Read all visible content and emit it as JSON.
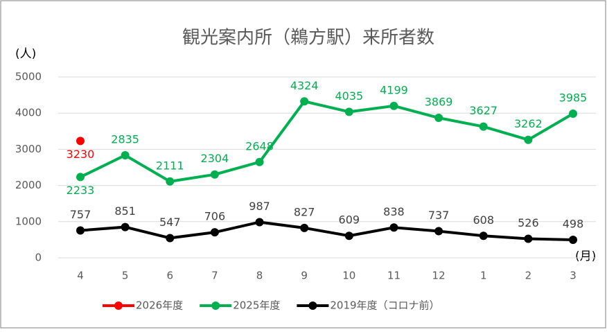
{
  "chart_data": {
    "type": "line",
    "title": "観光案内所（鵜方駅）来所者数",
    "y_label": "(人)",
    "x_label": "(月)",
    "categories": [
      "4",
      "5",
      "6",
      "7",
      "8",
      "9",
      "10",
      "11",
      "12",
      "1",
      "2",
      "3"
    ],
    "series": [
      {
        "name": "2026年度",
        "color": "#ff0000",
        "values": [
          3230,
          null,
          null,
          null,
          null,
          null,
          null,
          null,
          null,
          null,
          null,
          null
        ]
      },
      {
        "name": "2025年度",
        "color": "#00b050",
        "values": [
          2233,
          2835,
          2111,
          2304,
          2648,
          4324,
          4035,
          4199,
          3869,
          3627,
          3262,
          3985
        ]
      },
      {
        "name": "2019年度（コロナ前）",
        "color": "#000000",
        "values": [
          757,
          851,
          547,
          706,
          987,
          827,
          609,
          838,
          737,
          608,
          526,
          498
        ]
      }
    ],
    "ylim": [
      0,
      5000
    ],
    "yticks": [
      0,
      1000,
      2000,
      3000,
      4000,
      5000
    ],
    "grid": true,
    "legend": "bottom"
  }
}
